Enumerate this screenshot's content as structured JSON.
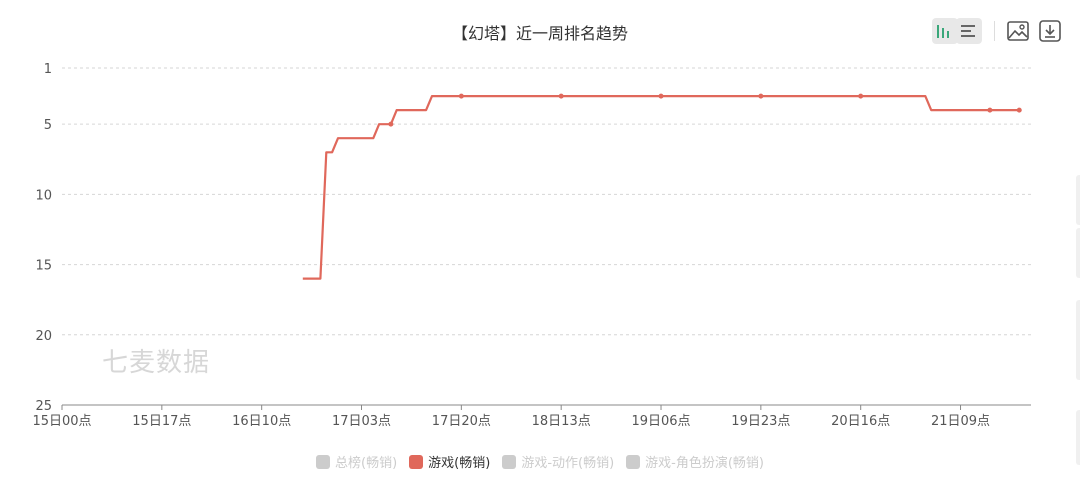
{
  "toolbar": {
    "icons": [
      "bar-chart-icon",
      "list-icon",
      "image-icon",
      "download-icon"
    ]
  },
  "watermark": "七麦数据",
  "legend": [
    {
      "label": "总榜(畅销)",
      "active": false
    },
    {
      "label": "游戏(畅销)",
      "active": true
    },
    {
      "label": "游戏-动作(畅销)",
      "active": false
    },
    {
      "label": "游戏-角色扮演(畅销)",
      "active": false
    }
  ],
  "chart_data": {
    "type": "line",
    "title": "【幻塔】近一周排名趋势",
    "y_inverted": true,
    "ylim": [
      1,
      25
    ],
    "yticks": [
      1,
      5,
      10,
      15,
      20,
      25
    ],
    "xlim": [
      0,
      165
    ],
    "xticks": [
      {
        "label": "15日00点",
        "x": 0
      },
      {
        "label": "15日17点",
        "x": 17
      },
      {
        "label": "16日10点",
        "x": 34
      },
      {
        "label": "17日03点",
        "x": 51
      },
      {
        "label": "17日20点",
        "x": 68
      },
      {
        "label": "18日13点",
        "x": 85
      },
      {
        "label": "19日06点",
        "x": 102
      },
      {
        "label": "19日23点",
        "x": 119
      },
      {
        "label": "20日16点",
        "x": 136
      },
      {
        "label": "21日09点",
        "x": 153
      }
    ],
    "color": "#e0685b",
    "grid": true,
    "series": [
      {
        "name": "游戏(畅销)",
        "points": [
          [
            41,
            16
          ],
          [
            44,
            16
          ],
          [
            45,
            7
          ],
          [
            46,
            7
          ],
          [
            47,
            6
          ],
          [
            53,
            6
          ],
          [
            54,
            5
          ],
          [
            56,
            5
          ],
          [
            57,
            4
          ],
          [
            62,
            4
          ],
          [
            63,
            3
          ],
          [
            68,
            3
          ],
          [
            85,
            3
          ],
          [
            102,
            3
          ],
          [
            119,
            3
          ],
          [
            136,
            3
          ],
          [
            147,
            3
          ],
          [
            148,
            4
          ],
          [
            158,
            4
          ],
          [
            163,
            4
          ]
        ],
        "markers": [
          [
            56,
            5
          ],
          [
            68,
            3
          ],
          [
            85,
            3
          ],
          [
            102,
            3
          ],
          [
            119,
            3
          ],
          [
            136,
            3
          ],
          [
            158,
            4
          ],
          [
            163,
            4
          ]
        ]
      }
    ]
  }
}
